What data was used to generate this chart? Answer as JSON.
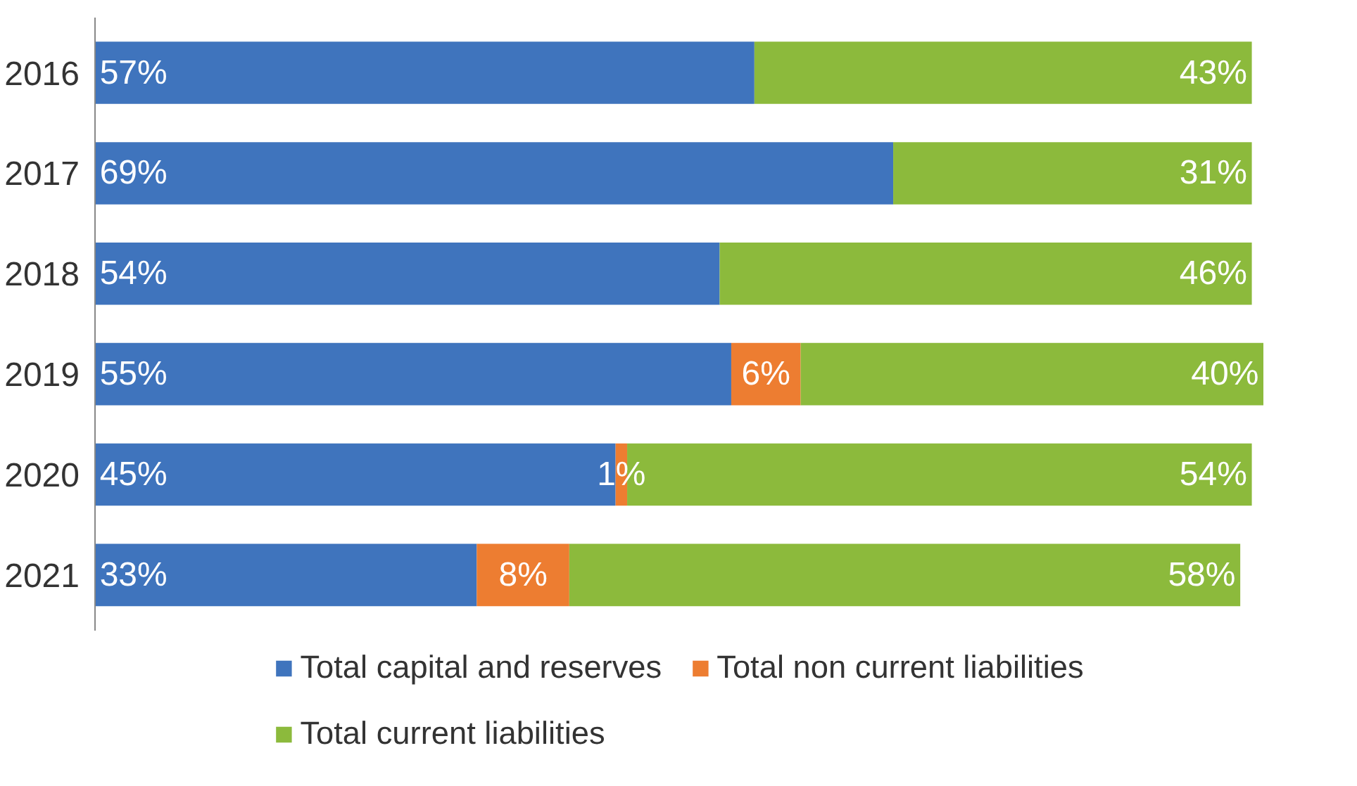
{
  "chart_data": {
    "type": "bar",
    "orientation": "horizontal",
    "stacked": true,
    "categories": [
      "2016",
      "2017",
      "2018",
      "2019",
      "2020",
      "2021"
    ],
    "series": [
      {
        "name": "Total capital and reserves",
        "color": "#3f74bd",
        "values": [
          57,
          69,
          54,
          55,
          45,
          33
        ],
        "value_labels": [
          "57%",
          "69%",
          "54%",
          "55%",
          "45%",
          "33%"
        ]
      },
      {
        "name": "Total non current liabilities",
        "color": "#ed7d31",
        "values": [
          0,
          0,
          0,
          6,
          1,
          8
        ],
        "value_labels": [
          null,
          null,
          null,
          "6%",
          "1%",
          "8%"
        ]
      },
      {
        "name": "Total current liabilities",
        "color": "#8cba3c",
        "values": [
          43,
          31,
          46,
          40,
          54,
          58
        ],
        "value_labels": [
          "43%",
          "31%",
          "46%",
          "40%",
          "54%",
          "58%"
        ]
      }
    ],
    "legend": "bottom",
    "tick_labels": "y",
    "grid": false
  }
}
